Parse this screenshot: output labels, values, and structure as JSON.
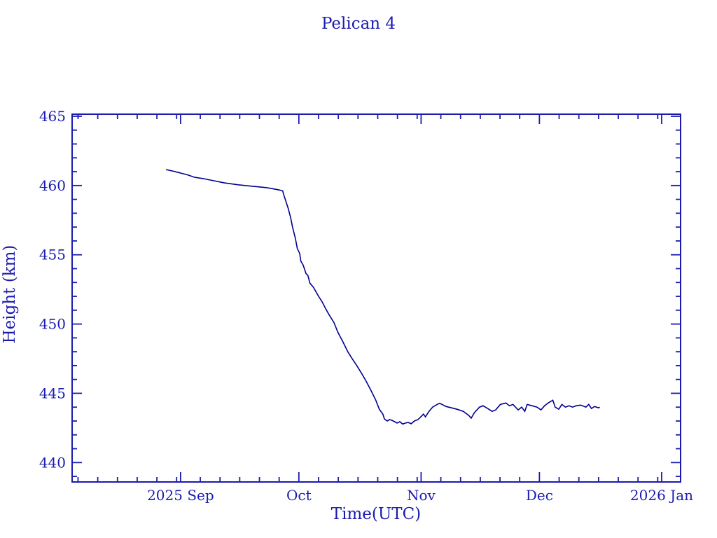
{
  "chart_data": {
    "type": "line",
    "title": "Pelican 4",
    "xlabel": "Time(UTC)",
    "ylabel": "Height (km)",
    "x_unit": "days since 2025-08-01",
    "x_range": [
      3.5,
      157.8
    ],
    "y_range": [
      438.6,
      465.15
    ],
    "x_major_ticks": [
      {
        "day": 31,
        "label": "2025 Sep"
      },
      {
        "day": 61,
        "label": "Oct"
      },
      {
        "day": 92,
        "label": "Nov"
      },
      {
        "day": 122,
        "label": "Dec"
      },
      {
        "day": 153,
        "label": "2026 Jan"
      }
    ],
    "x_minor_tick_days": [
      5,
      10,
      15,
      20,
      25,
      30,
      36,
      41,
      46,
      51,
      56,
      66,
      71,
      76,
      81,
      86,
      91,
      97,
      102,
      107,
      112,
      117,
      127,
      132,
      137,
      142,
      147,
      152
    ],
    "y_major_ticks": [
      440,
      445,
      450,
      455,
      460,
      465
    ],
    "y_minor_step": 1,
    "grid": false,
    "legend": null,
    "colors": {
      "ink": "#1b1bb0",
      "line": "#00008f",
      "background": "#ffffff"
    },
    "series": [
      {
        "name": "height",
        "points": [
          [
            27.3,
            461.15
          ],
          [
            29.0,
            461.05
          ],
          [
            31.0,
            460.9
          ],
          [
            33.0,
            460.75
          ],
          [
            34.5,
            460.6
          ],
          [
            36.7,
            460.5
          ],
          [
            39.3,
            460.35
          ],
          [
            42.0,
            460.2
          ],
          [
            45.6,
            460.05
          ],
          [
            49.1,
            459.95
          ],
          [
            52.7,
            459.85
          ],
          [
            55.7,
            459.7
          ],
          [
            56.9,
            459.62
          ],
          [
            57.2,
            459.3
          ],
          [
            57.5,
            459.05
          ],
          [
            58.3,
            458.35
          ],
          [
            58.9,
            457.7
          ],
          [
            59.4,
            457.0
          ],
          [
            60.1,
            456.2
          ],
          [
            60.6,
            455.45
          ],
          [
            61.2,
            455.1
          ],
          [
            61.5,
            454.55
          ],
          [
            62.1,
            454.25
          ],
          [
            62.8,
            453.65
          ],
          [
            63.3,
            453.5
          ],
          [
            63.8,
            452.95
          ],
          [
            64.7,
            452.65
          ],
          [
            66.0,
            452.0
          ],
          [
            66.9,
            451.6
          ],
          [
            67.7,
            451.15
          ],
          [
            68.6,
            450.7
          ],
          [
            69.9,
            450.1
          ],
          [
            70.9,
            449.4
          ],
          [
            72.2,
            448.7
          ],
          [
            73.4,
            448.0
          ],
          [
            74.5,
            447.5
          ],
          [
            75.7,
            447.0
          ],
          [
            77.0,
            446.4
          ],
          [
            78.0,
            445.9
          ],
          [
            79.3,
            445.2
          ],
          [
            80.5,
            444.5
          ],
          [
            81.4,
            443.85
          ],
          [
            82.3,
            443.5
          ],
          [
            82.7,
            443.15
          ],
          [
            83.4,
            443.0
          ],
          [
            84.0,
            443.1
          ],
          [
            84.6,
            443.05
          ],
          [
            85.3,
            442.95
          ],
          [
            85.9,
            442.85
          ],
          [
            86.6,
            442.95
          ],
          [
            87.3,
            442.78
          ],
          [
            88.0,
            442.85
          ],
          [
            88.7,
            442.9
          ],
          [
            89.5,
            442.8
          ],
          [
            90.3,
            443.0
          ],
          [
            91.2,
            443.1
          ],
          [
            92.1,
            443.35
          ],
          [
            92.6,
            443.5
          ],
          [
            93.1,
            443.3
          ],
          [
            94.0,
            443.7
          ],
          [
            94.9,
            444.0
          ],
          [
            96.1,
            444.2
          ],
          [
            96.7,
            444.28
          ],
          [
            98.3,
            444.05
          ],
          [
            99.7,
            443.95
          ],
          [
            101.1,
            443.85
          ],
          [
            102.7,
            443.7
          ],
          [
            104.1,
            443.4
          ],
          [
            104.7,
            443.2
          ],
          [
            105.5,
            443.6
          ],
          [
            106.8,
            444.0
          ],
          [
            107.7,
            444.1
          ],
          [
            108.9,
            443.9
          ],
          [
            110.0,
            443.7
          ],
          [
            110.9,
            443.8
          ],
          [
            112.1,
            444.2
          ],
          [
            113.5,
            444.3
          ],
          [
            114.4,
            444.1
          ],
          [
            115.3,
            444.2
          ],
          [
            116.6,
            443.8
          ],
          [
            117.5,
            444.0
          ],
          [
            118.3,
            443.7
          ],
          [
            118.9,
            444.2
          ],
          [
            120.1,
            444.1
          ],
          [
            121.4,
            444.0
          ],
          [
            122.4,
            443.8
          ],
          [
            123.3,
            444.1
          ],
          [
            124.2,
            444.3
          ],
          [
            125.4,
            444.5
          ],
          [
            126.0,
            444.0
          ],
          [
            126.9,
            443.85
          ],
          [
            127.7,
            444.2
          ],
          [
            128.6,
            444.0
          ],
          [
            129.5,
            444.1
          ],
          [
            130.4,
            444.0
          ],
          [
            131.3,
            444.1
          ],
          [
            132.5,
            444.15
          ],
          [
            133.8,
            444.0
          ],
          [
            134.5,
            444.2
          ],
          [
            135.2,
            443.9
          ],
          [
            136.0,
            444.05
          ],
          [
            137.0,
            443.95
          ],
          [
            137.3,
            444.0
          ]
        ]
      }
    ]
  }
}
